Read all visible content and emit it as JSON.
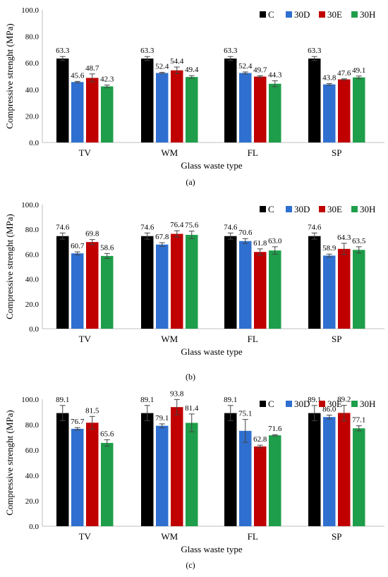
{
  "colors": {
    "C": "#000000",
    "30D": "#2f6fd0",
    "30E": "#c00000",
    "30H": "#1e9e4a",
    "axis": "#bfbfbf",
    "text": "#000000"
  },
  "chart_data": [
    {
      "type": "bar",
      "panel_label": "(a)",
      "ylabel": "Compressive strenght  (MPa)",
      "xlabel": "Glass waste type",
      "ylim": [
        0,
        100
      ],
      "yticks": [
        "0.0",
        "20.0",
        "40.0",
        "60.0",
        "80.0",
        "100.0"
      ],
      "categories": [
        "TV",
        "WM",
        "FL",
        "SP"
      ],
      "legend_position": "top-right",
      "grid": false,
      "series": [
        {
          "name": "C",
          "values": [
            63.3,
            63.3,
            63.3,
            63.3
          ],
          "labels": [
            "63.3",
            "63.3",
            "63.3",
            "63.3"
          ],
          "errors": [
            1.5,
            1.5,
            1.5,
            1.5
          ]
        },
        {
          "name": "30D",
          "values": [
            45.6,
            52.4,
            52.4,
            43.8
          ],
          "labels": [
            "45.6",
            "52.4",
            "52.4",
            "43.8"
          ],
          "errors": [
            0.5,
            0.5,
            0.8,
            0.6
          ]
        },
        {
          "name": "30E",
          "values": [
            48.7,
            54.4,
            49.7,
            47.6
          ],
          "labels": [
            "48.7",
            "54.4",
            "49.7",
            "47.6"
          ],
          "errors": [
            3.0,
            2.5,
            0.6,
            0.4
          ]
        },
        {
          "name": "30H",
          "values": [
            42.3,
            49.4,
            44.3,
            49.1
          ],
          "labels": [
            "42.3",
            "49.4",
            "44.3",
            "49.1"
          ],
          "errors": [
            1.0,
            1.0,
            2.2,
            1.0
          ]
        }
      ]
    },
    {
      "type": "bar",
      "panel_label": "(b)",
      "ylabel": "Compressive strenght  (MPa)",
      "xlabel": "Glass waste type",
      "ylim": [
        0,
        100
      ],
      "yticks": [
        "0.0",
        "20.0",
        "40.0",
        "60.0",
        "80.0",
        "100.0"
      ],
      "categories": [
        "TV",
        "WM",
        "FL",
        "SP"
      ],
      "legend_position": "top-right",
      "grid": false,
      "series": [
        {
          "name": "C",
          "values": [
            74.6,
            74.6,
            74.6,
            74.6
          ],
          "labels": [
            "74.6",
            "74.6",
            "74.6",
            "74.6"
          ],
          "errors": [
            2.5,
            2.5,
            2.5,
            2.5
          ]
        },
        {
          "name": "30D",
          "values": [
            60.7,
            67.8,
            70.6,
            58.9
          ],
          "labels": [
            "60.7",
            "67.8",
            "70.6",
            "58.9"
          ],
          "errors": [
            1.2,
            1.5,
            2.0,
            1.2
          ]
        },
        {
          "name": "30E",
          "values": [
            69.8,
            76.4,
            61.8,
            64.3
          ],
          "labels": [
            "69.8",
            "76.4",
            "61.8",
            "64.3"
          ],
          "errors": [
            2.0,
            2.5,
            2.5,
            4.5
          ]
        },
        {
          "name": "30H",
          "values": [
            58.6,
            75.6,
            63.0,
            63.5
          ],
          "labels": [
            "58.6",
            "75.6",
            "63.0",
            "63.5"
          ],
          "errors": [
            2.0,
            3.0,
            3.0,
            2.5
          ]
        }
      ]
    },
    {
      "type": "bar",
      "panel_label": "(c)",
      "ylabel": "Compressive strenght  (MPa)",
      "xlabel": "Glass waste type",
      "ylim": [
        0,
        100
      ],
      "yticks": [
        "0.0",
        "20.0",
        "40.0",
        "60.0",
        "80.0",
        "100.0"
      ],
      "categories": [
        "TV",
        "WM",
        "FL",
        "SP"
      ],
      "legend_position": "top-right",
      "grid": false,
      "series": [
        {
          "name": "C",
          "values": [
            89.1,
            89.1,
            89.1,
            89.1
          ],
          "labels": [
            "89.1",
            "89.1",
            "89.1",
            "89.1"
          ],
          "errors": [
            6.0,
            6.0,
            6.0,
            6.0
          ]
        },
        {
          "name": "30D",
          "values": [
            76.7,
            79.1,
            75.1,
            86.0
          ],
          "labels": [
            "76.7",
            "79.1",
            "75.1",
            "86.0"
          ],
          "errors": [
            1.0,
            1.5,
            9.0,
            1.5
          ]
        },
        {
          "name": "30E",
          "values": [
            81.5,
            93.8,
            62.8,
            89.2
          ],
          "labels": [
            "81.5",
            "93.8",
            "62.8",
            "89.2"
          ],
          "errors": [
            5.0,
            6.0,
            1.0,
            6.0
          ]
        },
        {
          "name": "30H",
          "values": [
            65.6,
            81.4,
            71.6,
            77.1
          ],
          "labels": [
            "65.6",
            "81.4",
            "71.6",
            "77.1"
          ],
          "errors": [
            2.5,
            7.0,
            0.5,
            2.0
          ]
        }
      ]
    }
  ]
}
